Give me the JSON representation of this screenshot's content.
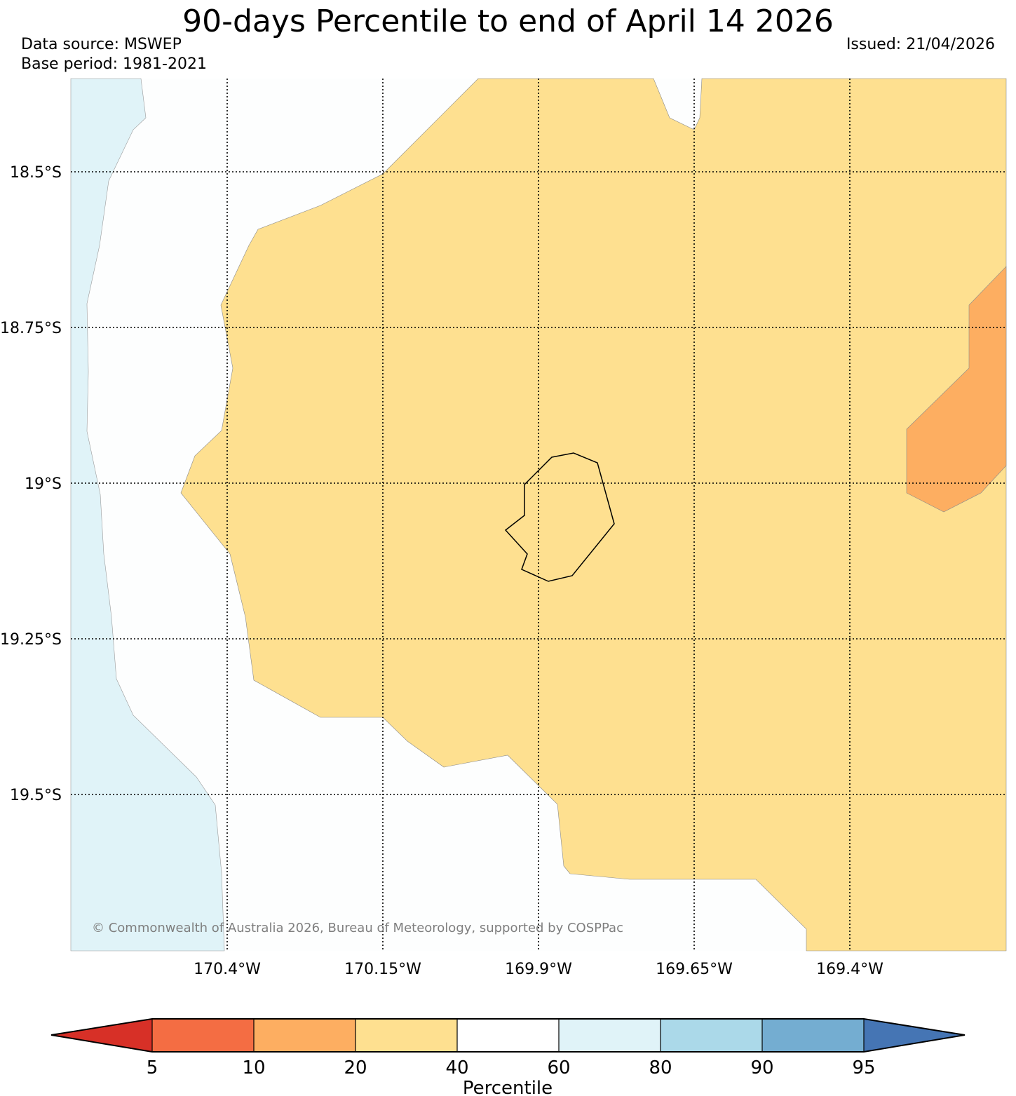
{
  "title": "90-days Percentile to end of April 14 2026",
  "data_source": "Data source: MSWEP",
  "base_period": "Base period: 1981-2021",
  "issued": "Issued: 21/04/2026",
  "copyright": "© Commonwealth of Australia 2026, Bureau of Meteorology, supported by COSPPac",
  "map": {
    "lat_labels": [
      "18.5°S",
      "18.75°S",
      "19°S",
      "19.25°S",
      "19.5°S"
    ],
    "lon_labels": [
      "170.4°W",
      "170.15°W",
      "169.9°W",
      "169.65°W",
      "169.4°W"
    ],
    "regions": [
      {
        "category": "60-80",
        "color": "#e0f3f8"
      },
      {
        "category": "20-40",
        "color": "#fee090"
      },
      {
        "category": "10-20",
        "color": "#fdae61"
      }
    ]
  },
  "colorbar": {
    "title": "Percentile",
    "ticks": [
      "5",
      "10",
      "20",
      "40",
      "60",
      "80",
      "90",
      "95"
    ],
    "below_color": "#d73027",
    "above_color": "#4575b4",
    "bins": [
      {
        "range": "5-10",
        "color": "#f46d43"
      },
      {
        "range": "10-20",
        "color": "#fdae61"
      },
      {
        "range": "20-40",
        "color": "#fee090"
      },
      {
        "range": "40-60",
        "color": "#ffffff"
      },
      {
        "range": "60-80",
        "color": "#e0f3f8"
      },
      {
        "range": "80-90",
        "color": "#abd9e9"
      },
      {
        "range": "90-95",
        "color": "#74add1"
      }
    ]
  }
}
